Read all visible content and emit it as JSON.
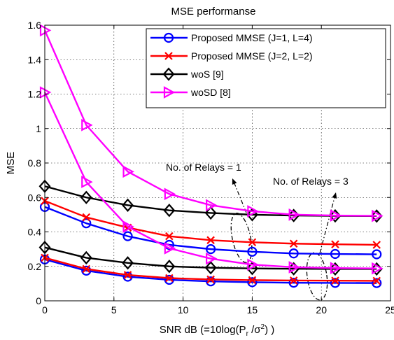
{
  "chart_data": {
    "type": "line",
    "title": "MSE performanse",
    "xlabel": "SNR dB (=10log(P",
    "xlabel_sub": "r",
    "xlabel_mid": " /σ",
    "xlabel_sup": "2",
    "xlabel_end": ") )",
    "ylabel": "MSE",
    "xlim": [
      0,
      25
    ],
    "ylim": [
      0,
      1.6
    ],
    "xticks": [
      0,
      5,
      10,
      15,
      20,
      25
    ],
    "xtick_labels": [
      "0",
      "5",
      "10",
      "15",
      "20",
      "25"
    ],
    "yticks": [
      0,
      0.2,
      0.4,
      0.6,
      0.8,
      1,
      1.2,
      1.4,
      1.6
    ],
    "ytick_labels": [
      "0",
      "0.2",
      "0.4",
      "0.6",
      "0.8",
      "1",
      "1.2",
      "1.4",
      "1.6"
    ],
    "grid": true,
    "legend_position": "top-right",
    "x": [
      0,
      3,
      6,
      9,
      12,
      15,
      18,
      21,
      24
    ],
    "series": [
      {
        "name": "Proposed MMSE (J=1, L=4)",
        "color": "#0000ff",
        "marker": "circle",
        "curves": [
          [
            0.545,
            0.45,
            0.375,
            0.325,
            0.3,
            0.285,
            0.275,
            0.272,
            0.27
          ],
          [
            0.24,
            0.175,
            0.14,
            0.122,
            0.113,
            0.108,
            0.105,
            0.104,
            0.103
          ]
        ]
      },
      {
        "name": "Proposed MMSE (J=2, L=2)",
        "color": "#ff0000",
        "marker": "x",
        "curves": [
          [
            0.58,
            0.485,
            0.425,
            0.375,
            0.352,
            0.34,
            0.332,
            0.328,
            0.325
          ],
          [
            0.25,
            0.185,
            0.15,
            0.132,
            0.124,
            0.12,
            0.118,
            0.117,
            0.116
          ]
        ]
      },
      {
        "name": "woS [9]",
        "color": "#000000",
        "marker": "diamond",
        "curves": [
          [
            0.665,
            0.6,
            0.555,
            0.525,
            0.51,
            0.5,
            0.495,
            0.493,
            0.492
          ],
          [
            0.31,
            0.25,
            0.22,
            0.2,
            0.192,
            0.188,
            0.186,
            0.185,
            0.185
          ]
        ]
      },
      {
        "name": "woSD [8]",
        "color": "#ff00ff",
        "marker": "triangle-right",
        "curves": [
          [
            1.57,
            1.02,
            0.75,
            0.62,
            0.555,
            0.52,
            0.5,
            0.495,
            0.493
          ],
          [
            1.21,
            0.69,
            0.43,
            0.305,
            0.245,
            0.21,
            0.195,
            0.19,
            0.188
          ]
        ]
      }
    ],
    "annotations": [
      {
        "text": "No. of Relays = 1"
      },
      {
        "text": "No. of Relays = 3"
      }
    ]
  }
}
